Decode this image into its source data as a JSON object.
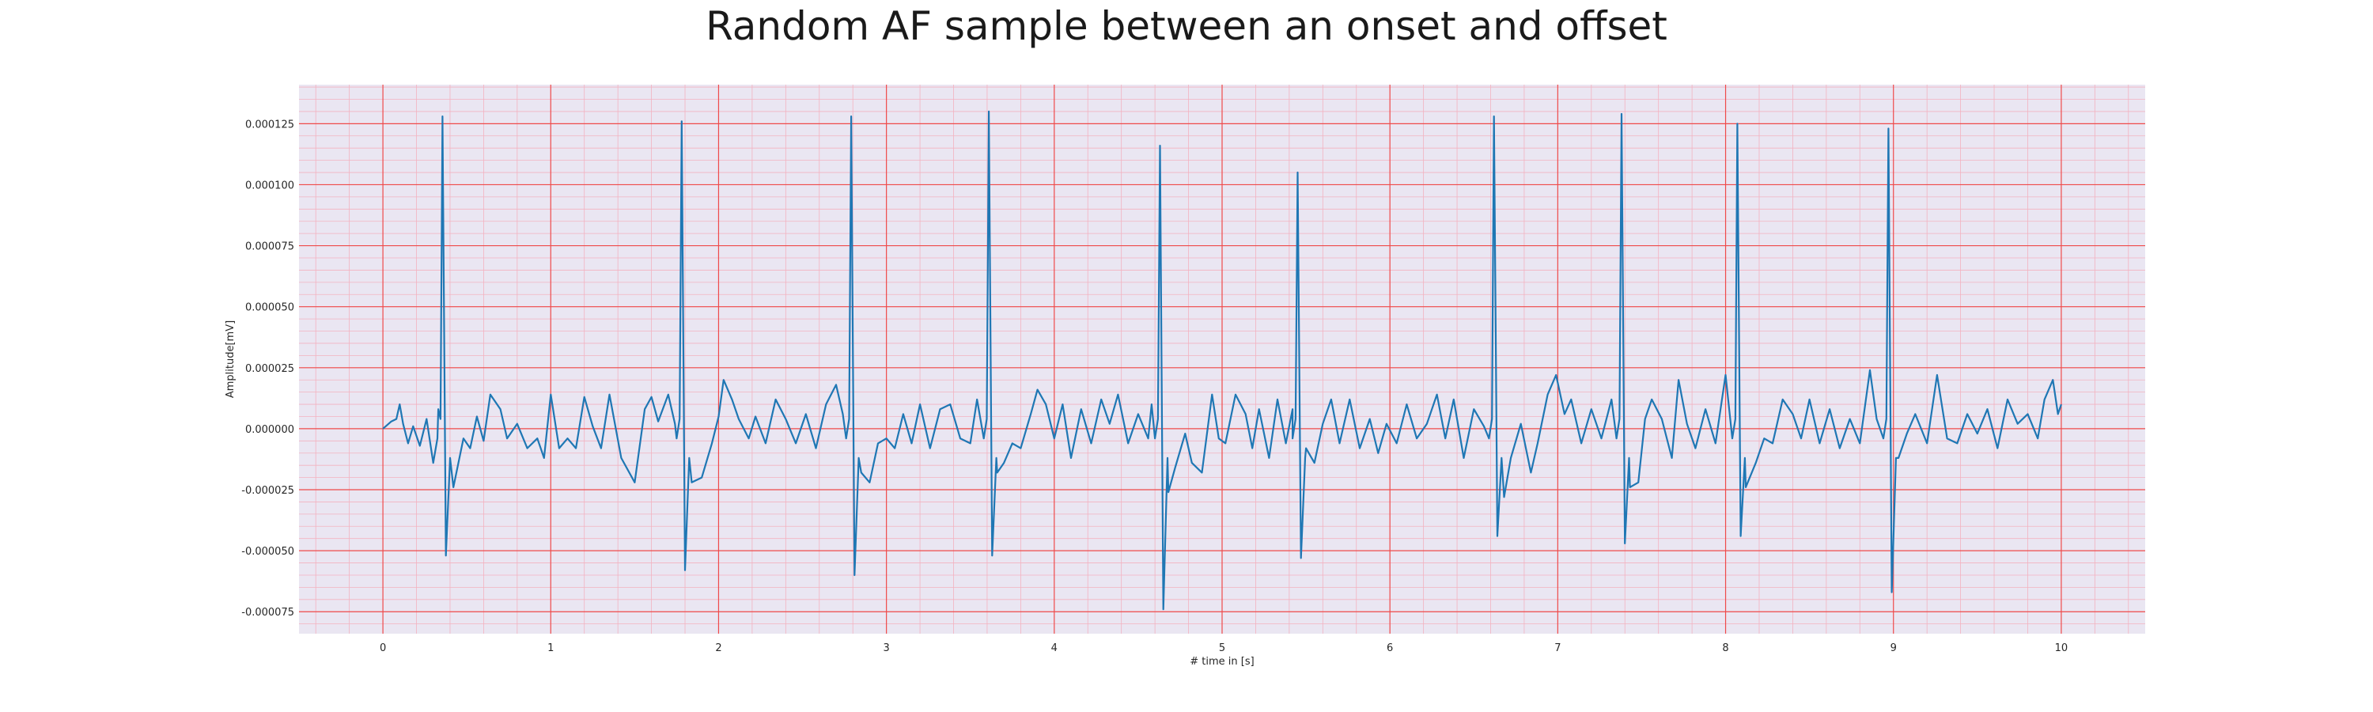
{
  "chart_data": {
    "type": "line",
    "title": "Random AF sample between an onset and offset",
    "xlabel": "# time in [s]",
    "ylabel": "Amplitude[mV]",
    "xlim": [
      -0.5,
      10.5
    ],
    "ylim": [
      -8.4e-05,
      0.000141
    ],
    "x_ticks": [
      0,
      1,
      2,
      3,
      4,
      5,
      6,
      7,
      8,
      9,
      10
    ],
    "x_tick_labels": [
      "0",
      "1",
      "2",
      "3",
      "4",
      "5",
      "6",
      "7",
      "8",
      "9",
      "10"
    ],
    "y_ticks": [
      -7.5e-05,
      -5e-05,
      -2.5e-05,
      0,
      2.5e-05,
      5e-05,
      7.5e-05,
      0.0001,
      0.000125
    ],
    "y_tick_labels": [
      "-0.000075",
      "-0.000050",
      "-0.000025",
      "0.000000",
      "0.000025",
      "0.000050",
      "0.000075",
      "0.000100",
      "0.000125"
    ],
    "grid": true,
    "minor_grid": true,
    "colors": {
      "line": "#1f77b4",
      "plot_background": "#eae6f2",
      "major_grid": "#ef4a4a",
      "minor_grid": "#f3b2c0"
    },
    "beats": [
      {
        "t": 0.355,
        "peak": 0.000128,
        "s": -5.2e-05
      },
      {
        "t": 1.78,
        "peak": 0.000126,
        "s": -5.8e-05
      },
      {
        "t": 2.79,
        "peak": 0.000128,
        "s": -6e-05
      },
      {
        "t": 3.61,
        "peak": 0.00013,
        "s": -5.2e-05
      },
      {
        "t": 4.63,
        "peak": 0.000116,
        "s": -7.4e-05
      },
      {
        "t": 5.45,
        "peak": 0.000105,
        "s": -5.3e-05
      },
      {
        "t": 6.62,
        "peak": 0.000128,
        "s": -4.4e-05
      },
      {
        "t": 7.38,
        "peak": 0.000129,
        "s": -4.7e-05
      },
      {
        "t": 8.07,
        "peak": 0.000125,
        "s": -4.4e-05
      },
      {
        "t": 8.97,
        "peak": 0.000123,
        "s": -6.7e-05
      }
    ],
    "baseline_points": [
      [
        0,
        0
      ],
      [
        0.05,
        3e-06
      ],
      [
        0.08,
        4e-06
      ],
      [
        0.1,
        1e-05
      ],
      [
        0.12,
        2e-06
      ],
      [
        0.15,
        -6e-06
      ],
      [
        0.18,
        1e-06
      ],
      [
        0.22,
        -7e-06
      ],
      [
        0.26,
        4e-06
      ],
      [
        0.3,
        -1.4e-05
      ],
      [
        0.33,
        8e-06
      ],
      [
        0.42,
        -2.4e-05
      ],
      [
        0.48,
        -4e-06
      ],
      [
        0.52,
        -8e-06
      ],
      [
        0.56,
        5e-06
      ],
      [
        0.6,
        -5e-06
      ],
      [
        0.64,
        1.4e-05
      ],
      [
        0.7,
        8e-06
      ],
      [
        0.74,
        -4e-06
      ],
      [
        0.8,
        2e-06
      ],
      [
        0.86,
        -8e-06
      ],
      [
        0.92,
        -4e-06
      ],
      [
        0.96,
        -1.2e-05
      ],
      [
        1.0,
        1.4e-05
      ],
      [
        1.05,
        -8e-06
      ],
      [
        1.1,
        -4e-06
      ],
      [
        1.15,
        -8e-06
      ],
      [
        1.2,
        1.3e-05
      ],
      [
        1.25,
        1e-06
      ],
      [
        1.3,
        -8e-06
      ],
      [
        1.35,
        1.4e-05
      ],
      [
        1.42,
        -1.2e-05
      ],
      [
        1.5,
        -2.2e-05
      ],
      [
        1.56,
        8e-06
      ],
      [
        1.6,
        1.3e-05
      ],
      [
        1.64,
        3e-06
      ],
      [
        1.7,
        1.4e-05
      ],
      [
        1.74,
        2e-06
      ],
      [
        1.84,
        -2.2e-05
      ],
      [
        1.9,
        -2e-05
      ],
      [
        1.96,
        -6e-06
      ],
      [
        2.0,
        5e-06
      ],
      [
        2.03,
        2e-05
      ],
      [
        2.08,
        1.2e-05
      ],
      [
        2.12,
        4e-06
      ],
      [
        2.18,
        -4e-06
      ],
      [
        2.22,
        5e-06
      ],
      [
        2.28,
        -6e-06
      ],
      [
        2.34,
        1.2e-05
      ],
      [
        2.4,
        4e-06
      ],
      [
        2.46,
        -6e-06
      ],
      [
        2.52,
        6e-06
      ],
      [
        2.58,
        -8e-06
      ],
      [
        2.64,
        1e-05
      ],
      [
        2.7,
        1.8e-05
      ],
      [
        2.74,
        6e-06
      ],
      [
        2.85,
        -1.8e-05
      ],
      [
        2.9,
        -2.2e-05
      ],
      [
        2.95,
        -6e-06
      ],
      [
        3.0,
        -4e-06
      ],
      [
        3.05,
        -8e-06
      ],
      [
        3.1,
        6e-06
      ],
      [
        3.15,
        -6e-06
      ],
      [
        3.2,
        1e-05
      ],
      [
        3.26,
        -8e-06
      ],
      [
        3.32,
        8e-06
      ],
      [
        3.38,
        1e-05
      ],
      [
        3.44,
        -4e-06
      ],
      [
        3.5,
        -6e-06
      ],
      [
        3.54,
        1.2e-05
      ],
      [
        3.66,
        -1.8e-05
      ],
      [
        3.7,
        -1.4e-05
      ],
      [
        3.75,
        -6e-06
      ],
      [
        3.8,
        -8e-06
      ],
      [
        3.86,
        6e-06
      ],
      [
        3.9,
        1.6e-05
      ],
      [
        3.95,
        1e-05
      ],
      [
        4.0,
        -4e-06
      ],
      [
        4.05,
        1e-05
      ],
      [
        4.1,
        -1.2e-05
      ],
      [
        4.16,
        8e-06
      ],
      [
        4.22,
        -6e-06
      ],
      [
        4.28,
        1.2e-05
      ],
      [
        4.33,
        2e-06
      ],
      [
        4.38,
        1.4e-05
      ],
      [
        4.44,
        -6e-06
      ],
      [
        4.5,
        6e-06
      ],
      [
        4.56,
        -4e-06
      ],
      [
        4.58,
        1e-05
      ],
      [
        4.68,
        -2.6e-05
      ],
      [
        4.72,
        -1.6e-05
      ],
      [
        4.78,
        -2e-06
      ],
      [
        4.82,
        -1.4e-05
      ],
      [
        4.88,
        -1.8e-05
      ],
      [
        4.94,
        1.4e-05
      ],
      [
        4.98,
        -4e-06
      ],
      [
        5.02,
        -6e-06
      ],
      [
        5.08,
        1.4e-05
      ],
      [
        5.14,
        6e-06
      ],
      [
        5.18,
        -8e-06
      ],
      [
        5.22,
        8e-06
      ],
      [
        5.28,
        -1.2e-05
      ],
      [
        5.33,
        1.2e-05
      ],
      [
        5.38,
        -6e-06
      ],
      [
        5.42,
        8e-06
      ],
      [
        5.5,
        -8e-06
      ],
      [
        5.55,
        -1.4e-05
      ],
      [
        5.6,
        2e-06
      ],
      [
        5.65,
        1.2e-05
      ],
      [
        5.7,
        -6e-06
      ],
      [
        5.76,
        1.2e-05
      ],
      [
        5.82,
        -8e-06
      ],
      [
        5.88,
        4e-06
      ],
      [
        5.93,
        -1e-05
      ],
      [
        5.98,
        2e-06
      ],
      [
        6.04,
        -6e-06
      ],
      [
        6.1,
        1e-05
      ],
      [
        6.16,
        -4e-06
      ],
      [
        6.22,
        2e-06
      ],
      [
        6.28,
        1.4e-05
      ],
      [
        6.33,
        -4e-06
      ],
      [
        6.38,
        1.2e-05
      ],
      [
        6.44,
        -1.2e-05
      ],
      [
        6.5,
        8e-06
      ],
      [
        6.56,
        1e-06
      ],
      [
        6.68,
        -2.8e-05
      ],
      [
        6.72,
        -1.2e-05
      ],
      [
        6.78,
        2e-06
      ],
      [
        6.84,
        -1.8e-05
      ],
      [
        6.88,
        -6e-06
      ],
      [
        6.94,
        1.4e-05
      ],
      [
        6.99,
        2.2e-05
      ],
      [
        7.04,
        6e-06
      ],
      [
        7.08,
        1.2e-05
      ],
      [
        7.14,
        -6e-06
      ],
      [
        7.2,
        8e-06
      ],
      [
        7.26,
        -4e-06
      ],
      [
        7.32,
        1.2e-05
      ],
      [
        7.43,
        -2.4e-05
      ],
      [
        7.48,
        -2.2e-05
      ],
      [
        7.52,
        4e-06
      ],
      [
        7.56,
        1.2e-05
      ],
      [
        7.62,
        4e-06
      ],
      [
        7.68,
        -1.2e-05
      ],
      [
        7.72,
        2e-05
      ],
      [
        7.77,
        2e-06
      ],
      [
        7.82,
        -8e-06
      ],
      [
        7.88,
        8e-06
      ],
      [
        7.94,
        -6e-06
      ],
      [
        8.0,
        2.2e-05
      ],
      [
        8.12,
        -2.4e-05
      ],
      [
        8.18,
        -1.4e-05
      ],
      [
        8.23,
        -4e-06
      ],
      [
        8.28,
        -6e-06
      ],
      [
        8.34,
        1.2e-05
      ],
      [
        8.4,
        6e-06
      ],
      [
        8.45,
        -4e-06
      ],
      [
        8.5,
        1.2e-05
      ],
      [
        8.56,
        -6e-06
      ],
      [
        8.62,
        8e-06
      ],
      [
        8.68,
        -8e-06
      ],
      [
        8.74,
        4e-06
      ],
      [
        8.8,
        -6e-06
      ],
      [
        8.86,
        2.4e-05
      ],
      [
        8.9,
        4e-06
      ],
      [
        9.03,
        -1.2e-05
      ],
      [
        9.08,
        -2e-06
      ],
      [
        9.13,
        6e-06
      ],
      [
        9.2,
        -6e-06
      ],
      [
        9.26,
        2.2e-05
      ],
      [
        9.32,
        -4e-06
      ],
      [
        9.38,
        -6e-06
      ],
      [
        9.44,
        6e-06
      ],
      [
        9.5,
        -2e-06
      ],
      [
        9.56,
        8e-06
      ],
      [
        9.62,
        -8e-06
      ],
      [
        9.68,
        1.2e-05
      ],
      [
        9.74,
        2e-06
      ],
      [
        9.8,
        6e-06
      ],
      [
        9.86,
        -4e-06
      ],
      [
        9.9,
        1.2e-05
      ],
      [
        9.95,
        2e-05
      ],
      [
        9.98,
        6e-06
      ],
      [
        10.0,
        1e-05
      ]
    ]
  }
}
